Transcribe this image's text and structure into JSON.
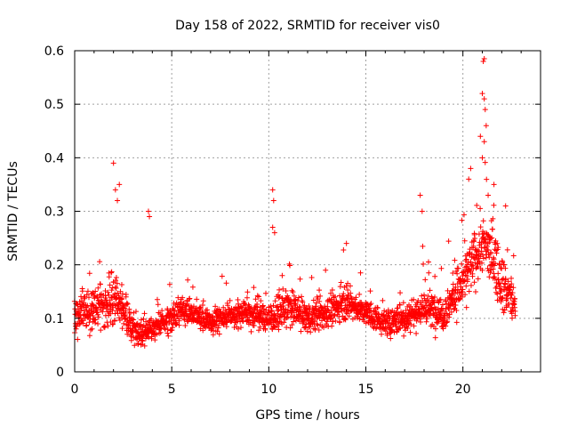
{
  "chart_data": {
    "type": "scatter",
    "title": "Day 158 of 2022, SRMTID for receiver vis0",
    "xlabel": "GPS time / hours",
    "ylabel": "SRMTID / TECUs",
    "xlim": [
      0,
      24
    ],
    "ylim": [
      0,
      0.6
    ],
    "xticks": [
      0,
      5,
      10,
      15,
      20
    ],
    "yticks": [
      0,
      0.1,
      0.2,
      0.3,
      0.4,
      0.5,
      0.6
    ],
    "xtick_labels": [
      "0",
      "5",
      "10",
      "15",
      "20"
    ],
    "ytick_labels": [
      "0",
      "0.1",
      "0.2",
      "0.3",
      "0.4",
      "0.5",
      "0.6"
    ],
    "grid": true,
    "marker": "+",
    "series": [
      {
        "name": "vis0",
        "color": "#ff0000",
        "envelope": [
          {
            "x": 0.0,
            "base": 0.1,
            "spread": 0.05
          },
          {
            "x": 0.5,
            "base": 0.11,
            "spread": 0.06
          },
          {
            "x": 1.0,
            "base": 0.12,
            "spread": 0.07
          },
          {
            "x": 1.5,
            "base": 0.12,
            "spread": 0.07
          },
          {
            "x": 2.0,
            "base": 0.14,
            "spread": 0.09
          },
          {
            "x": 2.5,
            "base": 0.12,
            "spread": 0.07
          },
          {
            "x": 3.0,
            "base": 0.08,
            "spread": 0.04
          },
          {
            "x": 3.5,
            "base": 0.07,
            "spread": 0.04
          },
          {
            "x": 4.0,
            "base": 0.08,
            "spread": 0.04
          },
          {
            "x": 4.5,
            "base": 0.09,
            "spread": 0.04
          },
          {
            "x": 5.0,
            "base": 0.1,
            "spread": 0.05
          },
          {
            "x": 5.5,
            "base": 0.12,
            "spread": 0.05
          },
          {
            "x": 6.0,
            "base": 0.11,
            "spread": 0.04
          },
          {
            "x": 7.0,
            "base": 0.09,
            "spread": 0.04
          },
          {
            "x": 8.0,
            "base": 0.11,
            "spread": 0.04
          },
          {
            "x": 9.0,
            "base": 0.11,
            "spread": 0.05
          },
          {
            "x": 10.0,
            "base": 0.1,
            "spread": 0.05
          },
          {
            "x": 11.0,
            "base": 0.12,
            "spread": 0.06
          },
          {
            "x": 12.0,
            "base": 0.1,
            "spread": 0.05
          },
          {
            "x": 13.0,
            "base": 0.11,
            "spread": 0.05
          },
          {
            "x": 14.0,
            "base": 0.13,
            "spread": 0.05
          },
          {
            "x": 15.0,
            "base": 0.11,
            "spread": 0.04
          },
          {
            "x": 16.0,
            "base": 0.09,
            "spread": 0.04
          },
          {
            "x": 17.0,
            "base": 0.1,
            "spread": 0.05
          },
          {
            "x": 18.0,
            "base": 0.12,
            "spread": 0.06
          },
          {
            "x": 19.0,
            "base": 0.11,
            "spread": 0.06
          },
          {
            "x": 20.0,
            "base": 0.17,
            "spread": 0.08
          },
          {
            "x": 20.5,
            "base": 0.2,
            "spread": 0.09
          },
          {
            "x": 21.0,
            "base": 0.24,
            "spread": 0.11
          },
          {
            "x": 21.5,
            "base": 0.22,
            "spread": 0.1
          },
          {
            "x": 22.0,
            "base": 0.17,
            "spread": 0.09
          },
          {
            "x": 22.7,
            "base": 0.12,
            "spread": 0.07
          }
        ],
        "x_range": [
          0.0,
          22.7
        ],
        "sample_count": 2200,
        "outliers": [
          {
            "x": 2.0,
            "y": 0.39
          },
          {
            "x": 2.1,
            "y": 0.34
          },
          {
            "x": 2.3,
            "y": 0.35
          },
          {
            "x": 2.2,
            "y": 0.32
          },
          {
            "x": 3.8,
            "y": 0.3
          },
          {
            "x": 3.85,
            "y": 0.29
          },
          {
            "x": 10.2,
            "y": 0.34
          },
          {
            "x": 10.25,
            "y": 0.32
          },
          {
            "x": 10.2,
            "y": 0.27
          },
          {
            "x": 10.3,
            "y": 0.26
          },
          {
            "x": 14.0,
            "y": 0.24
          },
          {
            "x": 17.8,
            "y": 0.33
          },
          {
            "x": 17.9,
            "y": 0.3
          },
          {
            "x": 20.3,
            "y": 0.36
          },
          {
            "x": 20.4,
            "y": 0.38
          },
          {
            "x": 20.9,
            "y": 0.44
          },
          {
            "x": 21.0,
            "y": 0.52
          },
          {
            "x": 21.05,
            "y": 0.58
          },
          {
            "x": 21.1,
            "y": 0.585
          },
          {
            "x": 21.1,
            "y": 0.51
          },
          {
            "x": 21.15,
            "y": 0.49
          },
          {
            "x": 21.2,
            "y": 0.46
          },
          {
            "x": 21.1,
            "y": 0.43
          },
          {
            "x": 21.0,
            "y": 0.4
          },
          {
            "x": 21.3,
            "y": 0.33
          },
          {
            "x": 21.6,
            "y": 0.35
          },
          {
            "x": 22.2,
            "y": 0.31
          }
        ]
      }
    ]
  }
}
